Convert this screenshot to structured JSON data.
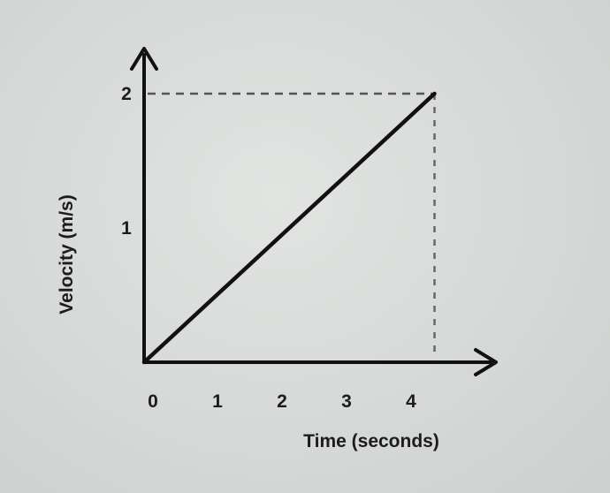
{
  "chart_data": {
    "type": "line",
    "title": "",
    "xlabel": "Time (seconds)",
    "ylabel": "Velocity (m/s)",
    "x_ticks": [
      "0",
      "1",
      "2",
      "3",
      "4"
    ],
    "y_ticks": [
      "1",
      "2"
    ],
    "xlim": [
      0,
      4.5
    ],
    "ylim": [
      0,
      2
    ],
    "grid": false,
    "series": [
      {
        "x": [
          0,
          4.5
        ],
        "y": [
          0,
          2
        ]
      }
    ],
    "reference_lines": {
      "dashed_to_endpoint": true
    },
    "colors": {
      "line": "#111111",
      "axis": "#111111",
      "dashed": "#555555"
    }
  }
}
